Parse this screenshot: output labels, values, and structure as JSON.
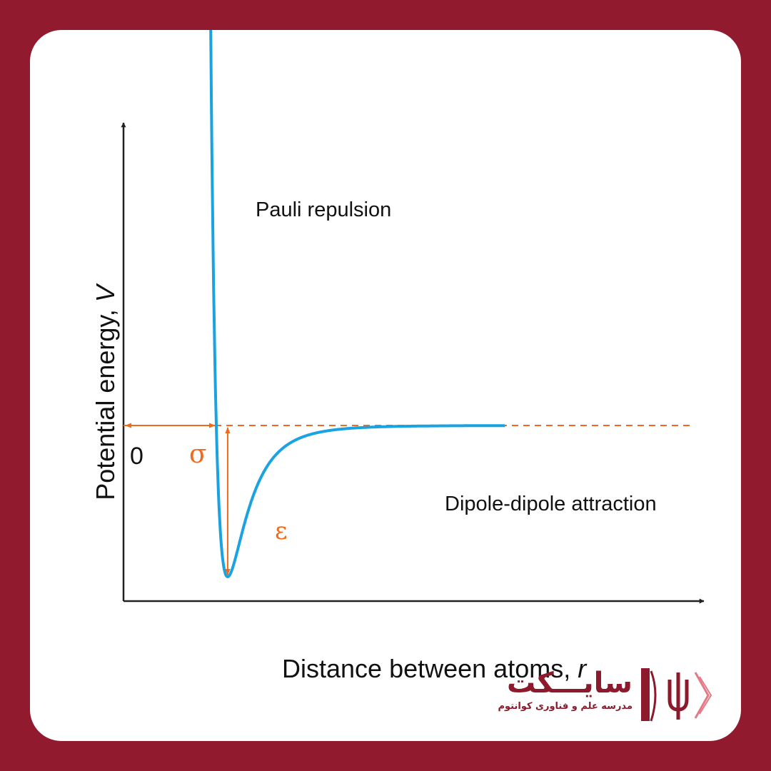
{
  "chart_data": {
    "type": "line",
    "title": "",
    "xlabel": "Distance between atoms,",
    "xlabel_var": "r",
    "ylabel": "Potential energy,",
    "ylabel_var": "V",
    "y_tick_labels": [
      "0"
    ],
    "grid": false,
    "series": [
      {
        "color": "#1aa3e0",
        "function": "Lennard-Jones",
        "sigma": 1.0,
        "epsilon": 1.0,
        "x_range": [
          0.895,
          4.1
        ]
      }
    ],
    "zero_line": {
      "y": 0,
      "style": "dashed",
      "color": "#f06a1c"
    },
    "annotations": [
      {
        "text": "Pauli repulsion"
      },
      {
        "text": "Dipole-dipole attraction"
      },
      {
        "text": "σ",
        "meaning": "distance from origin to zero crossing",
        "color": "#f06a1c"
      },
      {
        "text": "ε",
        "meaning": "well depth",
        "color": "#f06a1c"
      }
    ]
  },
  "logo": {
    "name": "سایـــکت",
    "subtitle": "مدرسه علم و فناوری کوانتوم",
    "brand_color": "#8c1a2c",
    "icon": "psi-book-icon"
  }
}
